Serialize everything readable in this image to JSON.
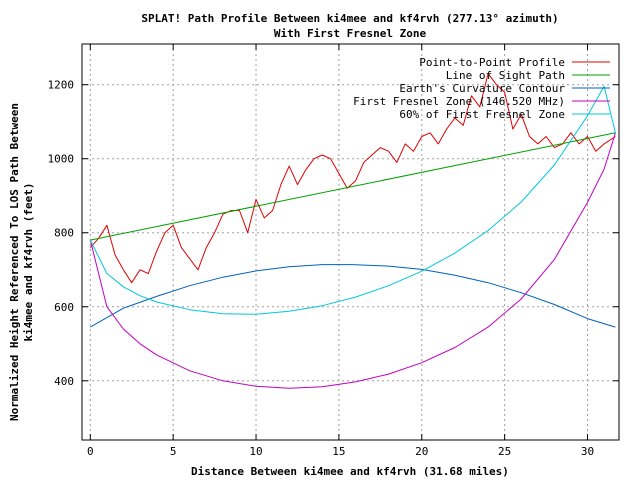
{
  "chart_data": {
    "type": "line",
    "title": "SPLAT! Path Profile Between ki4mee and kf4rvh (277.13° azimuth)",
    "subtitle": "With First Fresnel Zone",
    "xlabel": "Distance Between ki4mee and kf4rvh (31.68 miles)",
    "ylabel": "Normalized Height Referenced To LOS Path Between",
    "ylabel2": "ki4mee and kf4rvh (feet)",
    "xlim": [
      -0.5,
      31.9
    ],
    "ylim": [
      240,
      1310
    ],
    "x_ticks": [
      0,
      5,
      10,
      15,
      20,
      25,
      30
    ],
    "y_ticks": [
      400,
      600,
      800,
      1000,
      1200
    ],
    "grid": true,
    "legend_position": "top-right",
    "path_length": 31.68,
    "series": [
      {
        "name": "Point-to-Point Profile",
        "color": "#e00000",
        "x": [
          0,
          0.5,
          1,
          1.5,
          2,
          2.5,
          3,
          3.5,
          4,
          4.5,
          5,
          5.5,
          6,
          6.5,
          7,
          7.5,
          8,
          8.5,
          9,
          9.5,
          10,
          10.5,
          11,
          11.5,
          12,
          12.5,
          13,
          13.5,
          14,
          14.5,
          15,
          15.5,
          16,
          16.5,
          17,
          17.5,
          18,
          18.5,
          19,
          19.5,
          20,
          20.5,
          21,
          21.5,
          22,
          22.5,
          23,
          23.5,
          24,
          24.5,
          25,
          25.5,
          26,
          26.5,
          27,
          27.5,
          28,
          28.5,
          29,
          29.5,
          30,
          30.5,
          31,
          31.68
        ],
        "values": [
          760,
          785,
          820,
          740,
          700,
          665,
          700,
          690,
          750,
          800,
          820,
          760,
          730,
          700,
          760,
          800,
          850,
          860,
          860,
          800,
          890,
          840,
          860,
          930,
          980,
          930,
          970,
          1000,
          1010,
          1000,
          960,
          920,
          940,
          990,
          1010,
          1030,
          1020,
          990,
          1040,
          1020,
          1060,
          1070,
          1040,
          1080,
          1110,
          1090,
          1170,
          1140,
          1230,
          1200,
          1180,
          1080,
          1120,
          1060,
          1040,
          1060,
          1030,
          1040,
          1070,
          1040,
          1060,
          1020,
          1040,
          1060
        ]
      },
      {
        "name": "Line of Sight Path",
        "color": "#00a000",
        "x": [
          0,
          31.68
        ],
        "values": [
          780,
          1070
        ]
      },
      {
        "name": "Earth's Curvature Contour",
        "color": "#0060c0",
        "x": [
          0,
          2,
          4,
          6,
          8,
          10,
          12,
          14,
          15.84,
          18,
          20,
          22,
          24,
          26,
          28,
          30,
          31.68
        ],
        "values": [
          545,
          596,
          628,
          657,
          680,
          697,
          708,
          714,
          714,
          710,
          701,
          685,
          665,
          638,
          606,
          568,
          545
        ]
      },
      {
        "name": "First Fresnel Zone (146.520 MHz)",
        "color": "#c000c0",
        "x": [
          0,
          1,
          2,
          3,
          4,
          6,
          8,
          10,
          12,
          14,
          16,
          18,
          20,
          22,
          24,
          26,
          28,
          30,
          31,
          31.68
        ],
        "values": [
          780,
          600,
          540,
          500,
          470,
          427,
          400,
          385,
          380,
          384,
          397,
          418,
          449,
          490,
          545,
          621,
          728,
          882,
          972,
          1070
        ]
      },
      {
        "name": "60% of First Fresnel Zone",
        "color": "#00c8d8",
        "x": [
          0,
          1,
          2,
          3,
          4,
          6,
          8,
          10,
          12,
          14,
          16,
          18,
          20,
          22,
          24,
          26,
          28,
          30,
          31,
          31.68
        ],
        "values": [
          780,
          690,
          654,
          630,
          613,
          592,
          581,
          580,
          588,
          603,
          626,
          657,
          696,
          745,
          806,
          883,
          983,
          1116,
          1196,
          1070
        ]
      }
    ]
  }
}
